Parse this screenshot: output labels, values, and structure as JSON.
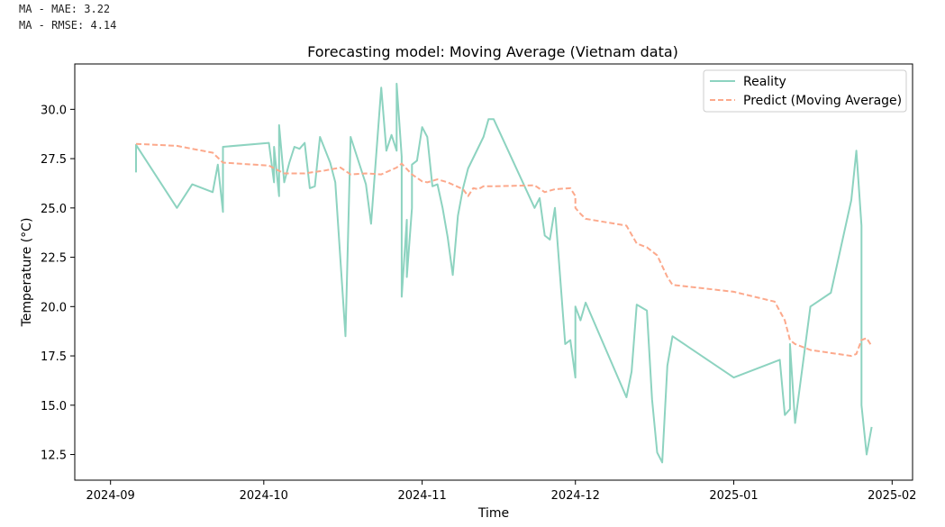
{
  "metrics": {
    "mae_line": "MA - MAE: 3.22",
    "rmse_line": "MA - RMSE: 4.14"
  },
  "chart_data": {
    "type": "line",
    "title": "Forecasting model: Moving Average (Vietnam data)",
    "xlabel": "Time",
    "ylabel": "Temperature (°C)",
    "xlim": [
      "2024-08-25",
      "2025-02-05"
    ],
    "ylim": [
      11.2,
      32.3
    ],
    "x_ticks": [
      "2024-09-01",
      "2024-10-01",
      "2024-11-01",
      "2024-12-01",
      "2025-01-01",
      "2025-02-01"
    ],
    "x_tick_labels": [
      "2024-09",
      "2024-10",
      "2024-11",
      "2024-12",
      "2025-01",
      "2025-02"
    ],
    "y_ticks": [
      12.5,
      15.0,
      17.5,
      20.0,
      22.5,
      25.0,
      27.5,
      30.0
    ],
    "y_tick_labels": [
      "12.5",
      "15.0",
      "17.5",
      "20.0",
      "22.5",
      "25.0",
      "27.5",
      "30.0"
    ],
    "grid": false,
    "legend_position": "top-right",
    "series": [
      {
        "name": "Reality",
        "color": "#8dd3c0",
        "style": "solid",
        "points": [
          [
            "2024-09-06",
            26.8
          ],
          [
            "2024-09-06",
            28.2
          ],
          [
            "2024-09-14",
            25.0
          ],
          [
            "2024-09-17",
            26.2
          ],
          [
            "2024-09-21",
            25.8
          ],
          [
            "2024-09-22",
            27.2
          ],
          [
            "2024-09-23",
            24.8
          ],
          [
            "2024-09-23",
            28.1
          ],
          [
            "2024-10-02",
            28.3
          ],
          [
            "2024-10-03",
            26.3
          ],
          [
            "2024-10-03",
            28.1
          ],
          [
            "2024-10-04",
            25.6
          ],
          [
            "2024-10-04",
            29.2
          ],
          [
            "2024-10-05",
            26.3
          ],
          [
            "2024-10-06",
            27.3
          ],
          [
            "2024-10-07",
            28.1
          ],
          [
            "2024-10-08",
            28.0
          ],
          [
            "2024-10-09",
            28.3
          ],
          [
            "2024-10-10",
            26.0
          ],
          [
            "2024-10-11",
            26.1
          ],
          [
            "2024-10-12",
            28.6
          ],
          [
            "2024-10-14",
            27.3
          ],
          [
            "2024-10-15",
            26.3
          ],
          [
            "2024-10-17",
            18.5
          ],
          [
            "2024-10-18",
            28.6
          ],
          [
            "2024-10-21",
            26.2
          ],
          [
            "2024-10-22",
            24.2
          ],
          [
            "2024-10-24",
            31.1
          ],
          [
            "2024-10-25",
            27.9
          ],
          [
            "2024-10-26",
            28.7
          ],
          [
            "2024-10-27",
            27.9
          ],
          [
            "2024-10-27",
            31.3
          ],
          [
            "2024-10-28",
            27.6
          ],
          [
            "2024-10-28",
            20.5
          ],
          [
            "2024-10-29",
            24.4
          ],
          [
            "2024-10-29",
            21.5
          ],
          [
            "2024-10-30",
            25.0
          ],
          [
            "2024-10-30",
            27.2
          ],
          [
            "2024-10-31",
            27.4
          ],
          [
            "2024-11-01",
            29.1
          ],
          [
            "2024-11-02",
            28.6
          ],
          [
            "2024-11-03",
            26.1
          ],
          [
            "2024-11-04",
            26.2
          ],
          [
            "2024-11-05",
            25.0
          ],
          [
            "2024-11-06",
            23.5
          ],
          [
            "2024-11-07",
            21.6
          ],
          [
            "2024-11-08",
            24.6
          ],
          [
            "2024-11-09",
            26.0
          ],
          [
            "2024-11-10",
            27.0
          ],
          [
            "2024-11-13",
            28.6
          ],
          [
            "2024-11-14",
            29.5
          ],
          [
            "2024-11-15",
            29.5
          ],
          [
            "2024-11-23",
            25.0
          ],
          [
            "2024-11-24",
            25.5
          ],
          [
            "2024-11-25",
            23.6
          ],
          [
            "2024-11-26",
            23.4
          ],
          [
            "2024-11-27",
            25.0
          ],
          [
            "2024-11-29",
            18.1
          ],
          [
            "2024-11-30",
            18.3
          ],
          [
            "2024-12-01",
            16.4
          ],
          [
            "2024-12-01",
            20.0
          ],
          [
            "2024-12-02",
            19.3
          ],
          [
            "2024-12-03",
            20.2
          ],
          [
            "2024-12-11",
            15.4
          ],
          [
            "2024-12-12",
            16.7
          ],
          [
            "2024-12-13",
            20.1
          ],
          [
            "2024-12-15",
            19.8
          ],
          [
            "2024-12-16",
            15.3
          ],
          [
            "2024-12-17",
            12.6
          ],
          [
            "2024-12-18",
            12.1
          ],
          [
            "2024-12-19",
            17.0
          ],
          [
            "2024-12-20",
            18.5
          ],
          [
            "2025-01-01",
            16.4
          ],
          [
            "2025-01-10",
            17.3
          ],
          [
            "2025-01-11",
            14.5
          ],
          [
            "2025-01-12",
            14.8
          ],
          [
            "2025-01-12",
            18.1
          ],
          [
            "2025-01-13",
            14.1
          ],
          [
            "2025-01-16",
            20.0
          ],
          [
            "2025-01-20",
            20.7
          ],
          [
            "2025-01-24",
            25.4
          ],
          [
            "2025-01-25",
            27.9
          ],
          [
            "2025-01-26",
            24.1
          ],
          [
            "2025-01-26",
            15.0
          ],
          [
            "2025-01-27",
            12.5
          ],
          [
            "2025-01-28",
            13.9
          ]
        ]
      },
      {
        "name": "Predict (Moving Average)",
        "color": "#fca98c",
        "style": "dashed",
        "points": [
          [
            "2024-09-06",
            28.25
          ],
          [
            "2024-09-14",
            28.15
          ],
          [
            "2024-09-17",
            28.0
          ],
          [
            "2024-09-21",
            27.8
          ],
          [
            "2024-09-23",
            27.3
          ],
          [
            "2024-10-02",
            27.15
          ],
          [
            "2024-10-05",
            26.75
          ],
          [
            "2024-10-09",
            26.75
          ],
          [
            "2024-10-13",
            26.9
          ],
          [
            "2024-10-16",
            27.05
          ],
          [
            "2024-10-18",
            26.7
          ],
          [
            "2024-10-21",
            26.75
          ],
          [
            "2024-10-24",
            26.7
          ],
          [
            "2024-10-27",
            27.05
          ],
          [
            "2024-10-28",
            27.25
          ],
          [
            "2024-10-30",
            26.7
          ],
          [
            "2024-11-01",
            26.35
          ],
          [
            "2024-11-02",
            26.3
          ],
          [
            "2024-11-04",
            26.45
          ],
          [
            "2024-11-06",
            26.3
          ],
          [
            "2024-11-09",
            25.95
          ],
          [
            "2024-11-10",
            25.6
          ],
          [
            "2024-11-11",
            26.0
          ],
          [
            "2024-11-12",
            25.95
          ],
          [
            "2024-11-13",
            26.1
          ],
          [
            "2024-11-15",
            26.1
          ],
          [
            "2024-11-23",
            26.15
          ],
          [
            "2024-11-25",
            25.8
          ],
          [
            "2024-11-27",
            25.95
          ],
          [
            "2024-11-30",
            26.0
          ],
          [
            "2024-12-01",
            25.6
          ],
          [
            "2024-12-01",
            25.0
          ],
          [
            "2024-12-02",
            24.7
          ],
          [
            "2024-12-03",
            24.45
          ],
          [
            "2024-12-11",
            24.1
          ],
          [
            "2024-12-13",
            23.2
          ],
          [
            "2024-12-15",
            23.0
          ],
          [
            "2024-12-17",
            22.6
          ],
          [
            "2024-12-19",
            21.5
          ],
          [
            "2024-12-20",
            21.1
          ],
          [
            "2025-01-01",
            20.75
          ],
          [
            "2025-01-09",
            20.25
          ],
          [
            "2025-01-11",
            19.3
          ],
          [
            "2025-01-12",
            18.3
          ],
          [
            "2025-01-13",
            18.1
          ],
          [
            "2025-01-16",
            17.8
          ],
          [
            "2025-01-24",
            17.5
          ],
          [
            "2025-01-25",
            17.6
          ],
          [
            "2025-01-26",
            18.3
          ],
          [
            "2025-01-27",
            18.4
          ],
          [
            "2025-01-28",
            18.0
          ]
        ]
      }
    ]
  }
}
